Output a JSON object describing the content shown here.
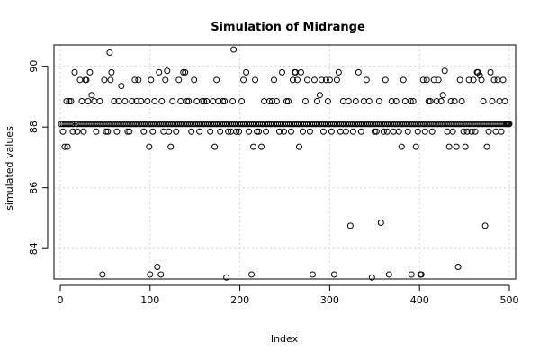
{
  "chart_data": {
    "type": "scatter",
    "title": "Simulation of Midrange",
    "xlabel": "Index",
    "ylabel": "simulated values",
    "xlim": [
      0,
      500
    ],
    "ylim": [
      83.0,
      90.7
    ],
    "xticks": [
      0,
      100,
      200,
      300,
      400,
      500
    ],
    "yticks": [
      84,
      86,
      88,
      90
    ],
    "grid": true,
    "marker": "open-circle",
    "baseline_value": 88.1,
    "baseline_runs": [
      [
        1,
        16
      ],
      [
        18,
        28
      ],
      [
        30,
        44
      ],
      [
        46,
        64
      ],
      [
        66,
        96
      ],
      [
        98,
        138
      ],
      [
        140,
        166
      ],
      [
        168,
        196
      ],
      [
        198,
        226
      ],
      [
        228,
        250
      ],
      [
        252,
        276
      ],
      [
        278,
        302
      ],
      [
        304,
        332
      ],
      [
        334,
        356
      ],
      [
        358,
        380
      ],
      [
        382,
        414
      ],
      [
        416,
        440
      ],
      [
        442,
        468
      ],
      [
        470,
        500
      ]
    ],
    "points": [
      [
        3,
        87.85
      ],
      [
        5,
        87.35
      ],
      [
        7,
        88.85
      ],
      [
        8,
        87.35
      ],
      [
        10,
        88.85
      ],
      [
        12,
        88.85
      ],
      [
        14,
        87.85
      ],
      [
        16,
        89.8
      ],
      [
        19,
        87.85
      ],
      [
        22,
        89.55
      ],
      [
        24,
        88.85
      ],
      [
        26,
        87.85
      ],
      [
        28,
        89.55
      ],
      [
        29,
        89.55
      ],
      [
        31,
        88.85
      ],
      [
        33,
        89.8
      ],
      [
        35,
        89.05
      ],
      [
        38,
        88.85
      ],
      [
        40,
        87.85
      ],
      [
        44,
        88.85
      ],
      [
        47,
        83.15
      ],
      [
        49,
        89.55
      ],
      [
        51,
        87.85
      ],
      [
        53,
        87.85
      ],
      [
        55,
        90.45
      ],
      [
        56,
        89.55
      ],
      [
        57,
        89.8
      ],
      [
        60,
        88.85
      ],
      [
        63,
        87.85
      ],
      [
        65,
        88.85
      ],
      [
        68,
        89.35
      ],
      [
        72,
        88.85
      ],
      [
        75,
        87.85
      ],
      [
        77,
        87.85
      ],
      [
        80,
        88.85
      ],
      [
        83,
        89.55
      ],
      [
        85,
        88.85
      ],
      [
        87,
        89.55
      ],
      [
        90,
        88.85
      ],
      [
        93,
        87.85
      ],
      [
        97,
        88.85
      ],
      [
        99,
        87.35
      ],
      [
        100,
        83.15
      ],
      [
        101,
        89.55
      ],
      [
        103,
        87.85
      ],
      [
        105,
        88.85
      ],
      [
        108,
        83.4
      ],
      [
        110,
        89.8
      ],
      [
        112,
        83.15
      ],
      [
        113,
        88.85
      ],
      [
        115,
        87.85
      ],
      [
        117,
        89.55
      ],
      [
        119,
        89.85
      ],
      [
        121,
        87.85
      ],
      [
        123,
        87.35
      ],
      [
        125,
        88.85
      ],
      [
        129,
        87.85
      ],
      [
        132,
        89.55
      ],
      [
        134,
        88.85
      ],
      [
        137,
        89.8
      ],
      [
        139,
        89.8
      ],
      [
        141,
        88.85
      ],
      [
        143,
        88.85
      ],
      [
        146,
        87.85
      ],
      [
        149,
        89.55
      ],
      [
        152,
        88.85
      ],
      [
        155,
        87.85
      ],
      [
        158,
        88.85
      ],
      [
        160,
        88.85
      ],
      [
        163,
        88.85
      ],
      [
        167,
        87.85
      ],
      [
        170,
        88.85
      ],
      [
        172,
        87.35
      ],
      [
        174,
        89.55
      ],
      [
        176,
        88.85
      ],
      [
        178,
        87.85
      ],
      [
        181,
        88.85
      ],
      [
        183,
        88.85
      ],
      [
        185,
        83.05
      ],
      [
        187,
        87.85
      ],
      [
        190,
        87.85
      ],
      [
        192,
        88.85
      ],
      [
        193,
        90.55
      ],
      [
        196,
        87.85
      ],
      [
        199,
        87.85
      ],
      [
        202,
        88.85
      ],
      [
        204,
        89.55
      ],
      [
        207,
        89.8
      ],
      [
        210,
        87.85
      ],
      [
        213,
        83.15
      ],
      [
        215,
        87.35
      ],
      [
        217,
        89.55
      ],
      [
        219,
        87.85
      ],
      [
        221,
        87.85
      ],
      [
        224,
        87.35
      ],
      [
        227,
        88.85
      ],
      [
        229,
        87.85
      ],
      [
        233,
        88.85
      ],
      [
        236,
        88.85
      ],
      [
        238,
        89.55
      ],
      [
        241,
        88.85
      ],
      [
        244,
        87.85
      ],
      [
        247,
        89.8
      ],
      [
        249,
        87.85
      ],
      [
        252,
        88.85
      ],
      [
        254,
        88.85
      ],
      [
        257,
        87.85
      ],
      [
        259,
        89.55
      ],
      [
        261,
        89.8
      ],
      [
        262,
        89.8
      ],
      [
        264,
        89.55
      ],
      [
        266,
        87.35
      ],
      [
        268,
        89.8
      ],
      [
        270,
        87.85
      ],
      [
        273,
        88.85
      ],
      [
        275,
        89.55
      ],
      [
        278,
        87.85
      ],
      [
        281,
        83.15
      ],
      [
        283,
        89.55
      ],
      [
        286,
        88.85
      ],
      [
        289,
        89.05
      ],
      [
        291,
        89.55
      ],
      [
        293,
        87.85
      ],
      [
        296,
        89.55
      ],
      [
        298,
        88.85
      ],
      [
        300,
        89.55
      ],
      [
        302,
        87.85
      ],
      [
        305,
        83.15
      ],
      [
        308,
        89.55
      ],
      [
        310,
        89.8
      ],
      [
        312,
        87.85
      ],
      [
        315,
        88.85
      ],
      [
        318,
        87.85
      ],
      [
        321,
        88.85
      ],
      [
        323,
        84.75
      ],
      [
        326,
        87.85
      ],
      [
        329,
        88.85
      ],
      [
        332,
        89.8
      ],
      [
        335,
        87.85
      ],
      [
        338,
        88.85
      ],
      [
        341,
        89.55
      ],
      [
        344,
        88.85
      ],
      [
        347,
        83.05
      ],
      [
        350,
        87.85
      ],
      [
        352,
        87.85
      ],
      [
        355,
        88.85
      ],
      [
        357,
        84.85
      ],
      [
        360,
        87.85
      ],
      [
        362,
        89.55
      ],
      [
        364,
        87.85
      ],
      [
        366,
        83.15
      ],
      [
        369,
        88.85
      ],
      [
        371,
        87.85
      ],
      [
        374,
        88.85
      ],
      [
        377,
        87.85
      ],
      [
        380,
        87.35
      ],
      [
        382,
        89.55
      ],
      [
        384,
        88.85
      ],
      [
        387,
        87.85
      ],
      [
        390,
        88.85
      ],
      [
        391,
        83.15
      ],
      [
        393,
        88.85
      ],
      [
        396,
        87.35
      ],
      [
        398,
        87.85
      ],
      [
        401,
        83.15
      ],
      [
        402,
        83.15
      ],
      [
        404,
        89.55
      ],
      [
        406,
        87.85
      ],
      [
        408,
        89.55
      ],
      [
        410,
        88.85
      ],
      [
        412,
        88.85
      ],
      [
        414,
        87.85
      ],
      [
        416,
        89.55
      ],
      [
        419,
        88.85
      ],
      [
        421,
        89.55
      ],
      [
        424,
        88.85
      ],
      [
        426,
        89.05
      ],
      [
        428,
        89.85
      ],
      [
        431,
        87.85
      ],
      [
        433,
        87.35
      ],
      [
        435,
        88.85
      ],
      [
        437,
        87.85
      ],
      [
        439,
        88.85
      ],
      [
        441,
        87.35
      ],
      [
        443,
        83.4
      ],
      [
        445,
        89.55
      ],
      [
        447,
        88.85
      ],
      [
        449,
        87.85
      ],
      [
        451,
        87.35
      ],
      [
        453,
        87.85
      ],
      [
        455,
        89.55
      ],
      [
        458,
        87.85
      ],
      [
        460,
        89.55
      ],
      [
        462,
        87.85
      ],
      [
        464,
        89.8
      ],
      [
        465,
        89.8
      ],
      [
        467,
        89.7
      ],
      [
        469,
        89.55
      ],
      [
        471,
        88.85
      ],
      [
        473,
        84.75
      ],
      [
        475,
        87.35
      ],
      [
        477,
        87.85
      ],
      [
        479,
        89.8
      ],
      [
        481,
        88.85
      ],
      [
        483,
        89.55
      ],
      [
        485,
        87.85
      ],
      [
        487,
        89.55
      ],
      [
        489,
        88.85
      ],
      [
        491,
        87.85
      ],
      [
        493,
        89.55
      ],
      [
        495,
        88.85
      ],
      [
        497,
        88.1
      ],
      [
        499,
        88.1
      ]
    ]
  }
}
